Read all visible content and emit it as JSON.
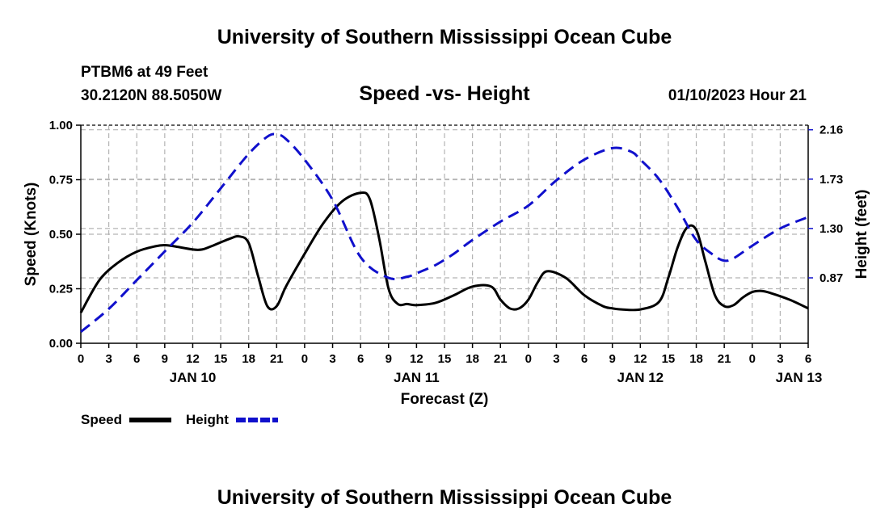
{
  "header": {
    "title": "University of Southern Mississippi Ocean Cube",
    "station": "PTBM6 at 49 Feet",
    "location": "30.2120N  88.5050W",
    "subtitle": "Speed -vs- Height",
    "datetime": "01/10/2023 Hour 21"
  },
  "footer": {
    "title": "University of Southern Mississippi Ocean Cube"
  },
  "chart_data": {
    "type": "line",
    "title": "Speed -vs- Height",
    "xlabel": "Forecast (Z)",
    "ylabel_left": "Speed (Knots)",
    "ylabel_right": "Height (feet)",
    "x_unit": "hours since JAN 10 00Z",
    "xlim": [
      0,
      78
    ],
    "ylim_left": [
      0,
      1.0
    ],
    "ylim_right": [
      0.3,
      2.2
    ],
    "grid": true,
    "x_ticks": [
      0,
      3,
      6,
      9,
      12,
      15,
      18,
      21,
      24,
      27,
      30,
      33,
      36,
      39,
      42,
      45,
      48,
      51,
      54,
      57,
      60,
      63,
      66,
      69,
      72,
      75,
      78
    ],
    "x_tick_labels": [
      "0",
      "3",
      "6",
      "9",
      "12",
      "15",
      "18",
      "21",
      "0",
      "3",
      "6",
      "9",
      "12",
      "15",
      "18",
      "21",
      "0",
      "3",
      "6",
      "9",
      "12",
      "15",
      "18",
      "21",
      "0",
      "3",
      "6"
    ],
    "date_labels": [
      {
        "x": 12,
        "label": "JAN 10"
      },
      {
        "x": 36,
        "label": "JAN 11"
      },
      {
        "x": 60,
        "label": "JAN 12"
      },
      {
        "x": 77,
        "label": "JAN 13"
      }
    ],
    "left_ticks": [
      0,
      0.25,
      0.5,
      0.75,
      1.0
    ],
    "left_tick_labels": [
      "0.00",
      "0.25",
      "0.50",
      "0.75",
      "1.00"
    ],
    "right_ticks": [
      0.87,
      1.3,
      1.73,
      2.16
    ],
    "right_tick_labels": [
      "0.87",
      "1.30",
      "1.73",
      "2.16"
    ],
    "series": [
      {
        "name": "Speed",
        "axis": "left",
        "color": "#000000",
        "dash": "solid",
        "x": [
          0,
          2,
          4,
          6,
          8,
          9,
          10,
          12,
          13,
          14,
          16,
          17,
          18,
          19,
          20,
          21,
          22,
          24,
          26,
          28,
          30,
          31,
          32,
          33,
          34,
          35,
          36,
          38,
          40,
          42,
          44,
          45,
          46,
          47,
          48,
          49,
          50,
          52,
          54,
          56,
          57,
          58,
          60,
          62,
          63,
          64,
          65,
          66,
          67,
          68,
          69,
          70,
          71,
          72,
          73,
          74,
          76,
          78
        ],
        "y": [
          0.14,
          0.29,
          0.37,
          0.42,
          0.445,
          0.45,
          0.445,
          0.43,
          0.43,
          0.445,
          0.48,
          0.49,
          0.46,
          0.31,
          0.17,
          0.17,
          0.26,
          0.41,
          0.55,
          0.65,
          0.69,
          0.66,
          0.48,
          0.25,
          0.18,
          0.18,
          0.175,
          0.185,
          0.22,
          0.26,
          0.26,
          0.2,
          0.16,
          0.16,
          0.2,
          0.28,
          0.33,
          0.3,
          0.22,
          0.17,
          0.16,
          0.155,
          0.155,
          0.19,
          0.3,
          0.44,
          0.53,
          0.52,
          0.37,
          0.22,
          0.17,
          0.175,
          0.21,
          0.235,
          0.24,
          0.23,
          0.2,
          0.16
        ]
      },
      {
        "name": "Height",
        "axis": "right",
        "color": "#1010CC",
        "dash": "dashed",
        "x": [
          0,
          3,
          6,
          9,
          12,
          15,
          18,
          20,
          21,
          22,
          24,
          27,
          30,
          33,
          35,
          36,
          38,
          40,
          42,
          45,
          48,
          51,
          54,
          57,
          59,
          60,
          62,
          64,
          66,
          68,
          69,
          70,
          72,
          75,
          78
        ],
        "y": [
          0.4,
          0.6,
          0.85,
          1.1,
          1.35,
          1.65,
          1.95,
          2.1,
          2.12,
          2.08,
          1.9,
          1.55,
          1.05,
          0.87,
          0.88,
          0.91,
          0.98,
          1.08,
          1.2,
          1.36,
          1.5,
          1.72,
          1.9,
          2.0,
          1.97,
          1.9,
          1.73,
          1.48,
          1.2,
          1.06,
          1.02,
          1.04,
          1.15,
          1.3,
          1.4
        ]
      }
    ],
    "legend": {
      "placement": "bottom-left",
      "items": [
        {
          "label": "Speed",
          "color": "#000000",
          "dash": "solid"
        },
        {
          "label": "Height",
          "color": "#1010CC",
          "dash": "dashed"
        }
      ]
    }
  }
}
